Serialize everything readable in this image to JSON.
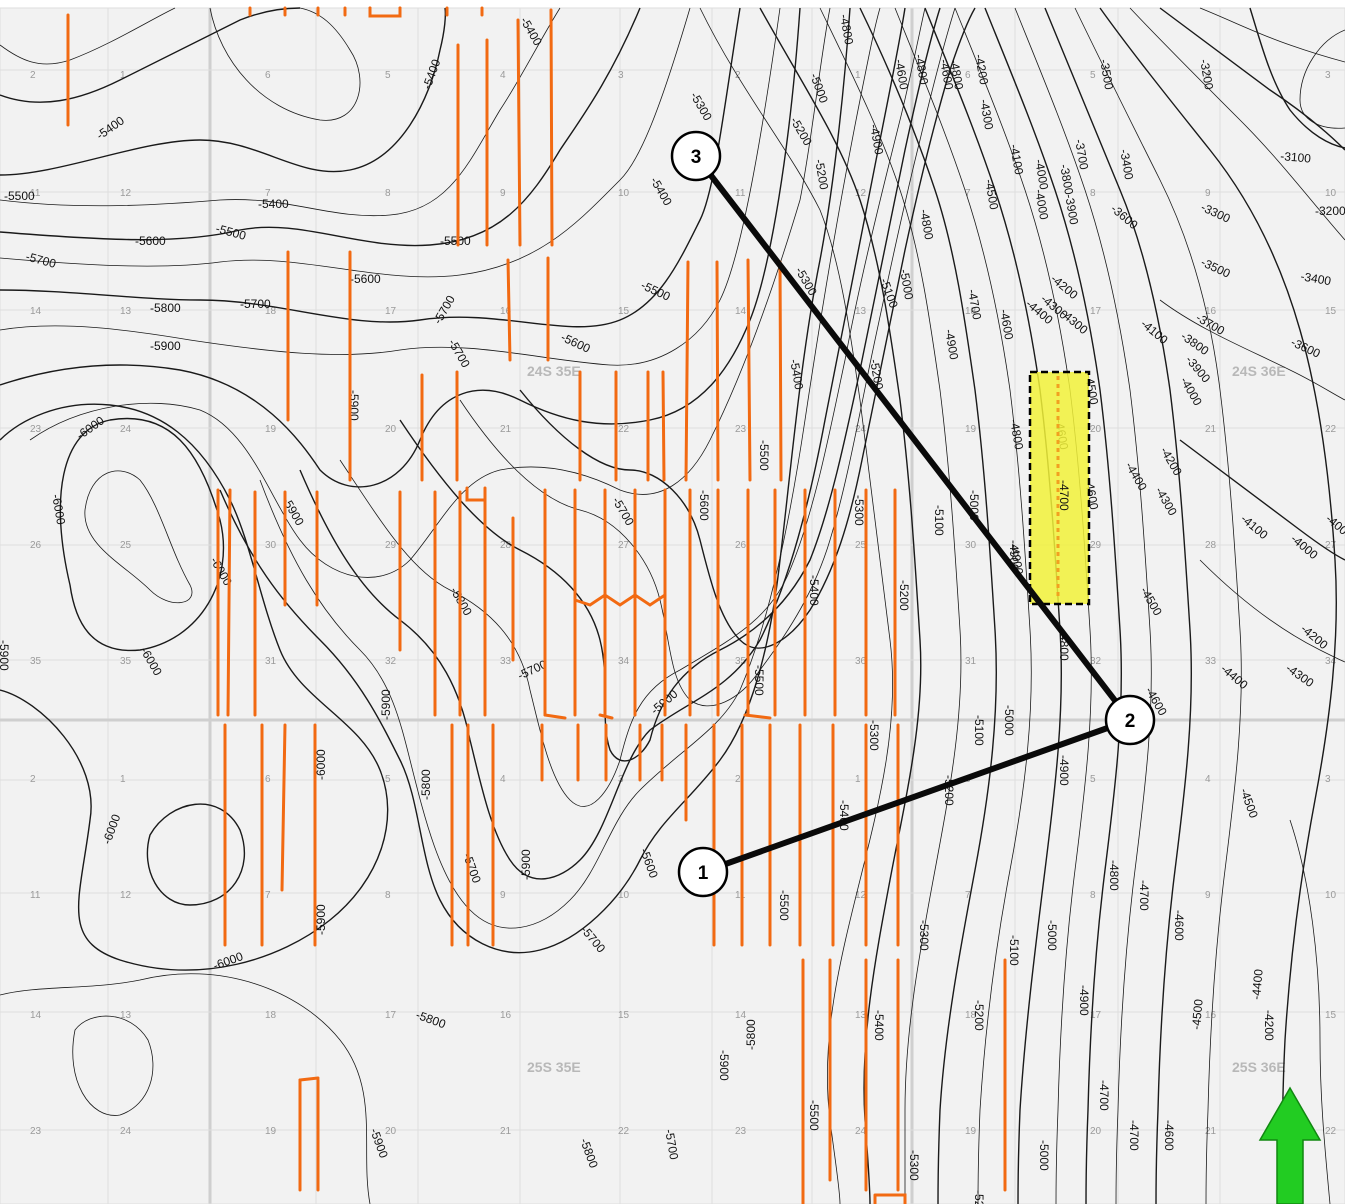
{
  "colors": {
    "background": "#f2f2f2",
    "contour": "#1a1a1a",
    "well_path": "#f26a12",
    "cross_section_line": "#0a0a0a",
    "highlight_fill": "#f2f23a",
    "north_arrow": "#22cc22"
  },
  "township_labels": [
    "24S 35E",
    "24S 36E",
    "25S 35E",
    "25S 36E"
  ],
  "section_numbers": {
    "row1": [
      "2",
      "1",
      "6",
      "5",
      "4",
      "3",
      "2",
      "1",
      "6",
      "5",
      "4",
      "3"
    ],
    "row2": [
      "11",
      "12",
      "7",
      "8",
      "9",
      "10",
      "11",
      "12",
      "7",
      "8",
      "9",
      "10"
    ],
    "row3": [
      "14",
      "13",
      "18",
      "17",
      "16",
      "15",
      "14",
      "13",
      "18",
      "17",
      "16",
      "15"
    ],
    "row4": [
      "23",
      "24",
      "19",
      "20",
      "21",
      "22",
      "23",
      "24",
      "19",
      "20",
      "21",
      "22"
    ],
    "row5": [
      "26",
      "25",
      "30",
      "29",
      "28",
      "27",
      "26",
      "25",
      "30",
      "29",
      "28",
      "27"
    ],
    "row6": [
      "35",
      "35",
      "31",
      "32",
      "33",
      "34",
      "35",
      "36",
      "31",
      "32",
      "33",
      "34"
    ],
    "row7": [
      "2",
      "1",
      "6",
      "5",
      "4",
      "3",
      "2",
      "1",
      "6",
      "5",
      "4",
      "3"
    ],
    "row8": [
      "11",
      "12",
      "7",
      "8",
      "9",
      "10",
      "11",
      "12",
      "7",
      "8",
      "9",
      "10"
    ],
    "row9": [
      "14",
      "13",
      "18",
      "17",
      "16",
      "15",
      "14",
      "13",
      "18",
      "17",
      "16",
      "15"
    ],
    "row10": [
      "23",
      "24",
      "19",
      "20",
      "21",
      "22",
      "23",
      "24",
      "19",
      "20",
      "21",
      "22"
    ]
  },
  "contour_labels": [
    "-5400",
    "-5500",
    "-5600",
    "-5700",
    "-5800",
    "-5900",
    "-6000",
    "-5300",
    "-5200",
    "-5100",
    "-5000",
    "-4900",
    "-4800",
    "-4700",
    "-4600",
    "-4500",
    "-4400",
    "-4300",
    "-4200",
    "-4100",
    "-4000",
    "-3900",
    "-3800",
    "-3700",
    "-3600",
    "-3500",
    "-3400",
    "-3300",
    "-3200",
    "-3100"
  ],
  "cross_section": {
    "nodes": [
      {
        "label": "1"
      },
      {
        "label": "2"
      },
      {
        "label": "3"
      }
    ]
  },
  "highlight_area": {
    "label": "-4700"
  },
  "north_arrow": {
    "icon": "north-arrow-icon"
  }
}
